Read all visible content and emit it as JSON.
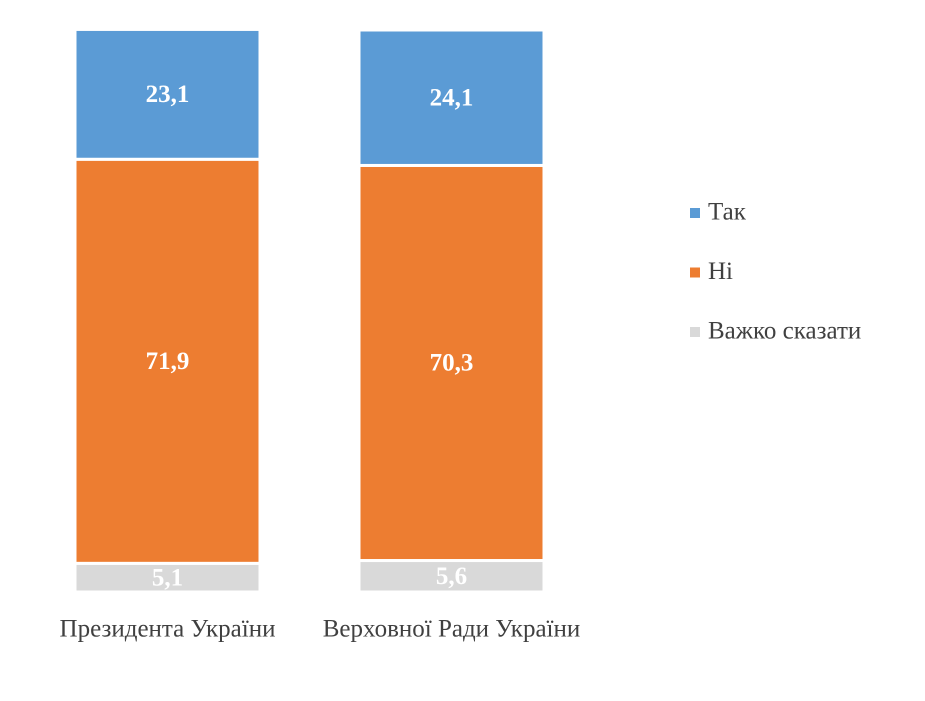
{
  "chart_data": {
    "type": "stacked-bar",
    "categories": [
      "Президента України",
      "Верховної Ради України"
    ],
    "series": [
      {
        "name": "Так",
        "color": "#5b9bd5",
        "values": [
          23.1,
          24.1
        ],
        "value_labels": [
          "23,1",
          "24,1"
        ]
      },
      {
        "name": "Ні",
        "color": "#ed7d31",
        "values": [
          71.9,
          70.3
        ],
        "value_labels": [
          "71,9",
          "70,3"
        ]
      },
      {
        "name": "Важко сказати",
        "color": "#d9d9d9",
        "values": [
          5.1,
          5.6
        ],
        "value_labels": [
          "5,1",
          "5,6"
        ]
      }
    ],
    "ylim": [
      0,
      100
    ],
    "legend": "right"
  }
}
